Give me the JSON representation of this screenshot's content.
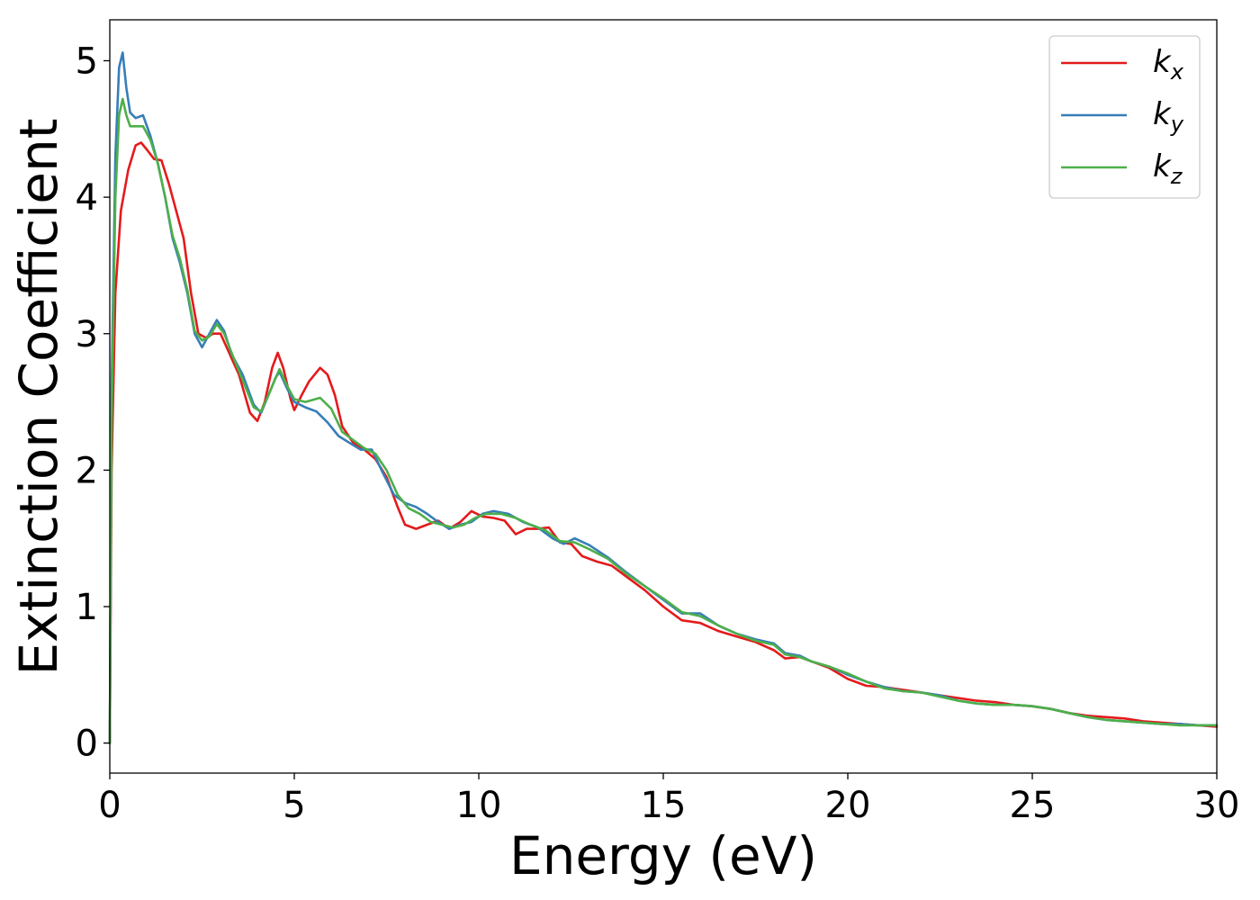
{
  "chart_data": {
    "type": "line",
    "title": "",
    "xlabel": "Energy (eV)",
    "ylabel": "Extinction Coefficient",
    "xlim": [
      0,
      30
    ],
    "ylim": [
      -0.22,
      5.3
    ],
    "xticks": [
      0,
      5,
      10,
      15,
      20,
      25,
      30
    ],
    "yticks": [
      0,
      1,
      2,
      3,
      4,
      5
    ],
    "grid": false,
    "legend_position": "top-right",
    "series": [
      {
        "name": "k_x",
        "base": "k",
        "sub": "x",
        "color": "#e41a1c",
        "x": [
          0,
          0.05,
          0.15,
          0.3,
          0.5,
          0.7,
          0.85,
          1.0,
          1.2,
          1.4,
          1.6,
          1.8,
          2.0,
          2.2,
          2.4,
          2.6,
          2.8,
          3.0,
          3.2,
          3.5,
          3.8,
          4.0,
          4.2,
          4.4,
          4.55,
          4.7,
          4.9,
          5.0,
          5.2,
          5.4,
          5.7,
          5.9,
          6.1,
          6.3,
          6.6,
          6.9,
          7.2,
          7.5,
          7.8,
          8.0,
          8.3,
          8.6,
          8.9,
          9.2,
          9.5,
          9.8,
          10.1,
          10.4,
          10.7,
          11.0,
          11.3,
          11.6,
          11.9,
          12.2,
          12.5,
          12.8,
          13.2,
          13.6,
          14.0,
          14.5,
          15.0,
          15.5,
          16.0,
          16.5,
          17.0,
          17.5,
          18.0,
          18.3,
          18.7,
          19.0,
          19.5,
          20.0,
          20.5,
          21.0,
          21.5,
          22.0,
          22.5,
          23.0,
          23.5,
          24.0,
          24.5,
          25.0,
          25.5,
          26.0,
          26.5,
          27.0,
          27.5,
          28.0,
          28.5,
          29.0,
          29.5,
          30.0
        ],
        "y": [
          0.0,
          2.0,
          3.3,
          3.9,
          4.2,
          4.38,
          4.4,
          4.35,
          4.28,
          4.27,
          4.1,
          3.9,
          3.7,
          3.3,
          3.0,
          2.97,
          3.0,
          3.0,
          2.88,
          2.7,
          2.42,
          2.36,
          2.5,
          2.75,
          2.86,
          2.75,
          2.52,
          2.44,
          2.55,
          2.65,
          2.75,
          2.7,
          2.55,
          2.32,
          2.2,
          2.15,
          2.08,
          1.95,
          1.73,
          1.6,
          1.57,
          1.6,
          1.63,
          1.57,
          1.62,
          1.7,
          1.66,
          1.65,
          1.63,
          1.53,
          1.57,
          1.57,
          1.58,
          1.47,
          1.46,
          1.37,
          1.33,
          1.3,
          1.22,
          1.12,
          1.0,
          0.9,
          0.88,
          0.82,
          0.78,
          0.74,
          0.68,
          0.62,
          0.63,
          0.6,
          0.55,
          0.47,
          0.42,
          0.41,
          0.39,
          0.37,
          0.35,
          0.33,
          0.31,
          0.3,
          0.28,
          0.27,
          0.25,
          0.22,
          0.2,
          0.19,
          0.18,
          0.16,
          0.15,
          0.14,
          0.13,
          0.12
        ]
      },
      {
        "name": "k_y",
        "base": "k",
        "sub": "y",
        "color": "#377eb8",
        "x": [
          0,
          0.05,
          0.15,
          0.25,
          0.35,
          0.45,
          0.55,
          0.7,
          0.9,
          1.1,
          1.3,
          1.5,
          1.7,
          1.9,
          2.1,
          2.3,
          2.5,
          2.7,
          2.9,
          3.1,
          3.3,
          3.6,
          3.9,
          4.1,
          4.3,
          4.5,
          4.6,
          4.8,
          5.0,
          5.3,
          5.6,
          5.9,
          6.2,
          6.5,
          6.8,
          7.1,
          7.4,
          7.7,
          8.0,
          8.3,
          8.6,
          8.9,
          9.2,
          9.5,
          9.8,
          10.1,
          10.4,
          10.8,
          11.2,
          11.6,
          12.0,
          12.3,
          12.6,
          13.0,
          13.5,
          14.0,
          14.5,
          15.0,
          15.5,
          16.0,
          16.5,
          17.0,
          17.5,
          18.0,
          18.3,
          18.7,
          19.0,
          19.5,
          20.0,
          20.5,
          21.0,
          21.5,
          22.0,
          22.5,
          23.0,
          23.5,
          24.0,
          24.5,
          25.0,
          25.5,
          26.0,
          26.5,
          27.0,
          27.5,
          28.0,
          28.5,
          29.0,
          29.5,
          30.0
        ],
        "y": [
          0.0,
          2.6,
          4.3,
          4.95,
          5.06,
          4.8,
          4.62,
          4.58,
          4.6,
          4.45,
          4.25,
          4.0,
          3.7,
          3.52,
          3.3,
          3.0,
          2.9,
          3.0,
          3.1,
          3.02,
          2.85,
          2.7,
          2.48,
          2.42,
          2.55,
          2.68,
          2.72,
          2.6,
          2.5,
          2.46,
          2.43,
          2.35,
          2.25,
          2.2,
          2.15,
          2.15,
          1.98,
          1.82,
          1.76,
          1.73,
          1.68,
          1.62,
          1.57,
          1.6,
          1.62,
          1.68,
          1.7,
          1.68,
          1.62,
          1.58,
          1.5,
          1.46,
          1.5,
          1.45,
          1.36,
          1.25,
          1.15,
          1.05,
          0.95,
          0.95,
          0.86,
          0.8,
          0.76,
          0.73,
          0.66,
          0.64,
          0.6,
          0.56,
          0.5,
          0.45,
          0.41,
          0.38,
          0.37,
          0.35,
          0.31,
          0.29,
          0.28,
          0.28,
          0.27,
          0.25,
          0.22,
          0.19,
          0.17,
          0.16,
          0.15,
          0.14,
          0.14,
          0.13,
          0.13
        ]
      },
      {
        "name": "k_z",
        "base": "k",
        "sub": "z",
        "color": "#4daf4a",
        "x": [
          0,
          0.05,
          0.15,
          0.25,
          0.35,
          0.45,
          0.55,
          0.7,
          0.9,
          1.1,
          1.3,
          1.5,
          1.7,
          1.9,
          2.1,
          2.3,
          2.5,
          2.7,
          2.9,
          3.1,
          3.3,
          3.6,
          3.9,
          4.1,
          4.3,
          4.5,
          4.6,
          4.8,
          5.0,
          5.3,
          5.7,
          6.0,
          6.3,
          6.6,
          6.9,
          7.2,
          7.5,
          7.8,
          8.1,
          8.4,
          8.7,
          9.0,
          9.3,
          9.6,
          9.9,
          10.2,
          10.6,
          11.0,
          11.4,
          11.8,
          12.2,
          12.6,
          13.0,
          13.5,
          14.0,
          14.5,
          15.0,
          15.5,
          16.0,
          16.5,
          17.0,
          17.5,
          18.0,
          18.3,
          18.7,
          19.0,
          19.5,
          20.0,
          20.5,
          21.0,
          21.5,
          22.0,
          22.5,
          23.0,
          23.5,
          24.0,
          24.5,
          25.0,
          25.5,
          26.0,
          26.5,
          27.0,
          27.5,
          28.0,
          28.5,
          29.0,
          29.5,
          30.0
        ],
        "y": [
          0.0,
          2.4,
          4.0,
          4.6,
          4.72,
          4.6,
          4.52,
          4.52,
          4.52,
          4.42,
          4.25,
          4.0,
          3.72,
          3.55,
          3.32,
          3.02,
          2.95,
          2.98,
          3.07,
          3.0,
          2.86,
          2.66,
          2.46,
          2.43,
          2.55,
          2.68,
          2.74,
          2.62,
          2.52,
          2.5,
          2.53,
          2.45,
          2.28,
          2.22,
          2.16,
          2.12,
          2.0,
          1.82,
          1.72,
          1.68,
          1.62,
          1.6,
          1.58,
          1.6,
          1.65,
          1.68,
          1.68,
          1.65,
          1.6,
          1.56,
          1.48,
          1.47,
          1.42,
          1.35,
          1.24,
          1.15,
          1.06,
          0.96,
          0.93,
          0.86,
          0.8,
          0.75,
          0.72,
          0.65,
          0.63,
          0.6,
          0.56,
          0.51,
          0.45,
          0.4,
          0.38,
          0.37,
          0.34,
          0.31,
          0.29,
          0.28,
          0.28,
          0.27,
          0.25,
          0.22,
          0.19,
          0.17,
          0.16,
          0.15,
          0.14,
          0.13,
          0.13,
          0.13
        ]
      }
    ]
  }
}
